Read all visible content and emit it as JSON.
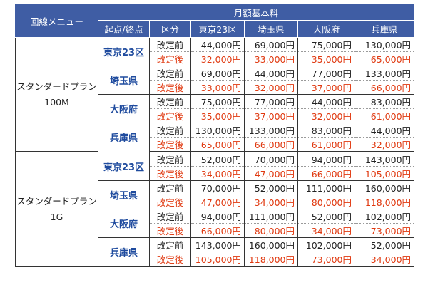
{
  "header": {
    "menu_label": "回線メニュー",
    "fee_label": "月額基本料",
    "origin_label": "起点/終点",
    "division_label": "区分",
    "destinations": [
      "東京23区",
      "埼玉県",
      "大阪府",
      "兵庫県"
    ]
  },
  "labels": {
    "before": "改定前",
    "after": "改定後"
  },
  "plans": [
    {
      "name_line1": "スタンダードプラン",
      "name_line2": "100M",
      "origins": [
        {
          "name": "東京23区",
          "before": [
            "44,000円",
            "69,000円",
            "75,000円",
            "130,000円"
          ],
          "after": [
            "32,000円",
            "33,000円",
            "35,000円",
            "65,000円"
          ]
        },
        {
          "name": "埼玉県",
          "before": [
            "69,000円",
            "44,000円",
            "77,000円",
            "133,000円"
          ],
          "after": [
            "33,000円",
            "32,000円",
            "37,000円",
            "66,000円"
          ]
        },
        {
          "name": "大阪府",
          "before": [
            "75,000円",
            "77,000円",
            "44,000円",
            "83,000円"
          ],
          "after": [
            "35,000円",
            "37,000円",
            "32,000円",
            "61,000円"
          ]
        },
        {
          "name": "兵庫県",
          "before": [
            "130,000円",
            "133,000円",
            "83,000円",
            "44,000円"
          ],
          "after": [
            "65,000円",
            "66,000円",
            "61,000円",
            "32,000円"
          ]
        }
      ]
    },
    {
      "name_line1": "スタンダードプラン",
      "name_line2": "1G",
      "origins": [
        {
          "name": "東京23区",
          "before": [
            "52,000円",
            "70,000円",
            "94,000円",
            "143,000円"
          ],
          "after": [
            "34,000円",
            "47,000円",
            "66,000円",
            "105,000円"
          ]
        },
        {
          "name": "埼玉県",
          "before": [
            "70,000円",
            "52,000円",
            "111,000円",
            "160,000円"
          ],
          "after": [
            "47,000円",
            "34,000円",
            "80,000円",
            "118,000円"
          ]
        },
        {
          "name": "大阪府",
          "before": [
            "94,000円",
            "111,000円",
            "52,000円",
            "102,000円"
          ],
          "after": [
            "66,000円",
            "80,000円",
            "34,000円",
            "73,000円"
          ]
        },
        {
          "name": "兵庫県",
          "before": [
            "143,000円",
            "160,000円",
            "102,000円",
            "52,000円"
          ],
          "after": [
            "105,000円",
            "118,000円",
            "73,000円",
            "34,000円"
          ]
        }
      ]
    }
  ]
}
